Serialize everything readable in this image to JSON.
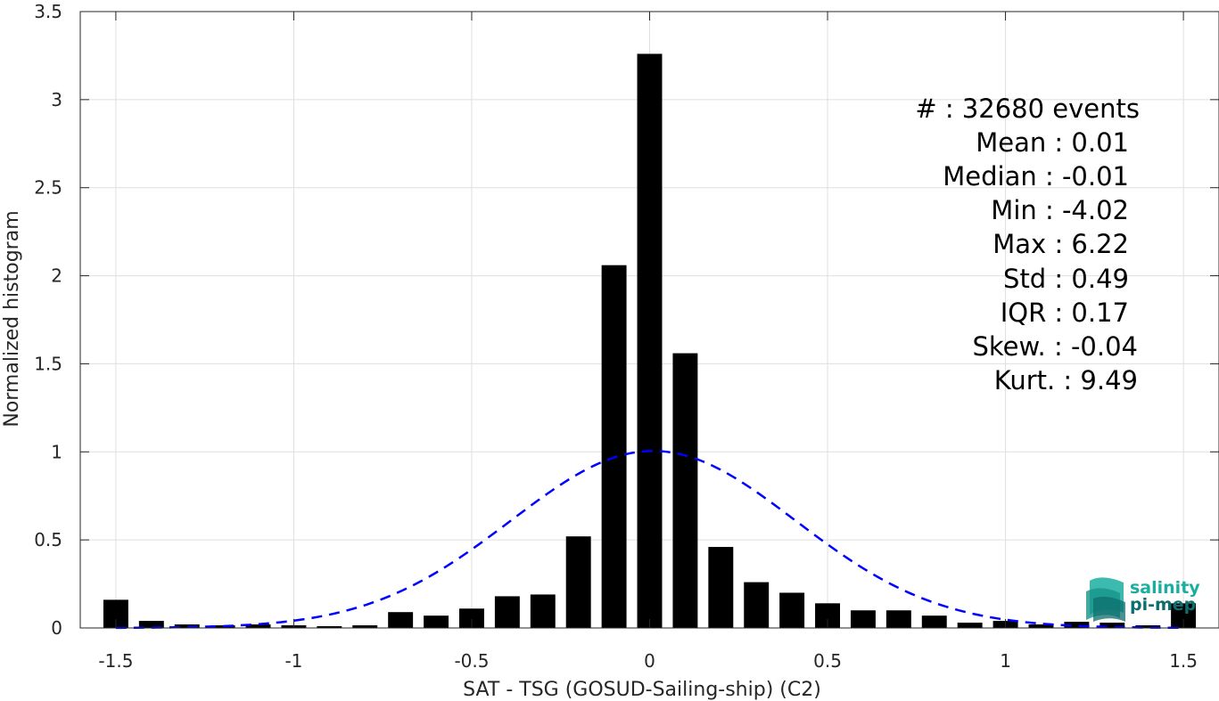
{
  "chart_data": {
    "type": "bar",
    "xlabel": "SAT - TSG (GOSUD-Sailing-ship) (C2)",
    "ylabel": "Normalized histogram",
    "xlim": [
      -1.6,
      1.6
    ],
    "ylim": [
      0,
      3.5
    ],
    "grid": true,
    "xticks": [
      -1.5,
      -1,
      -0.5,
      0,
      0.5,
      1,
      1.5
    ],
    "xtick_labels": [
      "-1.5",
      "-1",
      "-0.5",
      "0",
      "0.5",
      "1",
      "1.5"
    ],
    "yticks": [
      0,
      0.5,
      1,
      1.5,
      2,
      2.5,
      3,
      3.5
    ],
    "ytick_labels": [
      "0",
      "0.5",
      "1",
      "1.5",
      "2",
      "2.5",
      "3",
      "3.5"
    ],
    "bar_width": 0.07,
    "bar_color": "#000000",
    "bars": [
      {
        "x": -1.5,
        "y": 0.16
      },
      {
        "x": -1.4,
        "y": 0.04
      },
      {
        "x": -1.3,
        "y": 0.02
      },
      {
        "x": -1.2,
        "y": 0.015
      },
      {
        "x": -1.1,
        "y": 0.02
      },
      {
        "x": -1.0,
        "y": 0.015
      },
      {
        "x": -0.9,
        "y": 0.01
      },
      {
        "x": -0.8,
        "y": 0.015
      },
      {
        "x": -0.7,
        "y": 0.09
      },
      {
        "x": -0.6,
        "y": 0.07
      },
      {
        "x": -0.5,
        "y": 0.11
      },
      {
        "x": -0.4,
        "y": 0.18
      },
      {
        "x": -0.3,
        "y": 0.19
      },
      {
        "x": -0.2,
        "y": 0.52
      },
      {
        "x": -0.1,
        "y": 2.06
      },
      {
        "x": 0.0,
        "y": 3.26
      },
      {
        "x": 0.1,
        "y": 1.56
      },
      {
        "x": 0.2,
        "y": 0.46
      },
      {
        "x": 0.3,
        "y": 0.26
      },
      {
        "x": 0.4,
        "y": 0.2
      },
      {
        "x": 0.5,
        "y": 0.14
      },
      {
        "x": 0.6,
        "y": 0.1
      },
      {
        "x": 0.7,
        "y": 0.1
      },
      {
        "x": 0.8,
        "y": 0.07
      },
      {
        "x": 0.9,
        "y": 0.03
      },
      {
        "x": 1.0,
        "y": 0.04
      },
      {
        "x": 1.1,
        "y": 0.02
      },
      {
        "x": 1.2,
        "y": 0.035
      },
      {
        "x": 1.3,
        "y": 0.03
      },
      {
        "x": 1.4,
        "y": 0.015
      },
      {
        "x": 1.5,
        "y": 0.14
      }
    ],
    "fit_curve": {
      "type": "gaussian",
      "mean": 0.01,
      "std": 0.4,
      "peak": 1.005,
      "color": "#0000ff",
      "style": "dashed",
      "x_range": [
        -1.5,
        1.5
      ]
    }
  },
  "stats": [
    "#  : 32680 events",
    "Mean : 0.01",
    "Median : -0.01",
    "Min : -4.02",
    "Max : 6.22",
    "Std : 0.49",
    "IQR : 0.17",
    "Skew. : -0.04",
    "Kurt. : 9.49"
  ],
  "logo": {
    "line1": "salinity",
    "line2": "pi-mep",
    "color1": "#1aae9f",
    "color2": "#0d6e6e"
  }
}
